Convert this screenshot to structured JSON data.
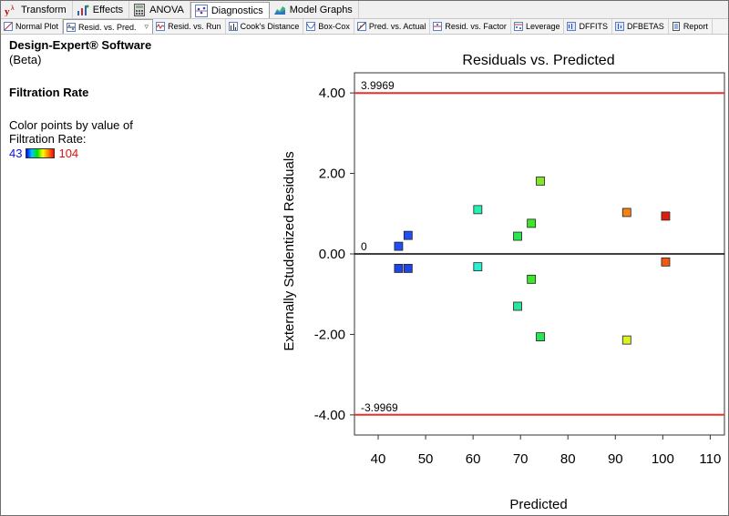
{
  "toolbar": {
    "tabs": [
      {
        "label": "Transform",
        "icon": "transform-icon"
      },
      {
        "label": "Effects",
        "icon": "effects-icon"
      },
      {
        "label": "ANOVA",
        "icon": "calculator-icon"
      },
      {
        "label": "Diagnostics",
        "icon": "diagnostics-icon",
        "active": true
      },
      {
        "label": "Model Graphs",
        "icon": "model-graphs-icon"
      }
    ]
  },
  "subtoolbar": {
    "tabs": [
      {
        "label": "Normal Plot",
        "icon": "normal-plot-icon"
      },
      {
        "label": "Resid. vs. Pred.",
        "icon": "resid-pred-icon",
        "active": true,
        "dropdown": "▿"
      },
      {
        "label": "Resid. vs. Run",
        "icon": "resid-run-icon"
      },
      {
        "label": "Cook's Distance",
        "icon": "cooks-distance-icon"
      },
      {
        "label": "Box-Cox",
        "icon": "box-cox-icon"
      },
      {
        "label": "Pred. vs. Actual",
        "icon": "pred-actual-icon"
      },
      {
        "label": "Resid. vs. Factor",
        "icon": "resid-factor-icon"
      },
      {
        "label": "Leverage",
        "icon": "leverage-icon"
      },
      {
        "label": "DFFITS",
        "icon": "dffits-icon"
      },
      {
        "label": "DFBETAS",
        "icon": "dfbetas-icon"
      },
      {
        "label": "Report",
        "icon": "report-icon"
      }
    ]
  },
  "left_panel": {
    "software": "Design-Expert® Software",
    "edition": "(Beta)",
    "response": "Filtration Rate",
    "color_label": "Color points by value of Filtration Rate:",
    "color_min": "43",
    "color_max": "104"
  },
  "colors": {
    "limit_line": "#e8312a",
    "zero_line": "#000000",
    "low": "#1010e0",
    "high": "#e01010"
  },
  "chart_data": {
    "type": "scatter",
    "title": "Residuals vs. Predicted",
    "xlabel": "Predicted",
    "ylabel": "Externally Studentized Residuals",
    "xlim": [
      35,
      113
    ],
    "ylim": [
      -4.5,
      4.5
    ],
    "x_ticks": [
      40,
      50,
      60,
      70,
      80,
      90,
      100,
      110
    ],
    "y_ticks": [
      -4,
      -2,
      0,
      2,
      4
    ],
    "y_tick_labels": [
      "-4.00",
      "-2.00",
      "0.00",
      "2.00",
      "4.00"
    ],
    "reference_lines": [
      {
        "y": 3.9969,
        "label": "3.9969",
        "color": "#e8312a"
      },
      {
        "y": 0,
        "label": "0",
        "color": "#000000"
      },
      {
        "y": -3.9969,
        "label": "-3.9969",
        "color": "#e8312a"
      }
    ],
    "points": [
      {
        "x": 44.3,
        "y": 0.19,
        "color": "#1e50f5"
      },
      {
        "x": 46.3,
        "y": 0.46,
        "color": "#1e50f5"
      },
      {
        "x": 44.3,
        "y": -0.36,
        "color": "#1e46e6"
      },
      {
        "x": 46.3,
        "y": -0.36,
        "color": "#1e46e6"
      },
      {
        "x": 61.0,
        "y": 1.1,
        "color": "#28f0b4"
      },
      {
        "x": 61.0,
        "y": -0.32,
        "color": "#28f0d2"
      },
      {
        "x": 69.4,
        "y": 0.44,
        "color": "#28e650"
      },
      {
        "x": 69.4,
        "y": -1.3,
        "color": "#28e69b"
      },
      {
        "x": 72.3,
        "y": 0.76,
        "color": "#3ce628"
      },
      {
        "x": 72.3,
        "y": -0.63,
        "color": "#3ce628"
      },
      {
        "x": 74.2,
        "y": 1.81,
        "color": "#82e628"
      },
      {
        "x": 74.2,
        "y": -2.06,
        "color": "#28e650"
      },
      {
        "x": 92.4,
        "y": 1.03,
        "color": "#f58214"
      },
      {
        "x": 92.4,
        "y": -2.14,
        "color": "#dcf028"
      },
      {
        "x": 100.6,
        "y": 0.94,
        "color": "#dc1e0a"
      },
      {
        "x": 100.6,
        "y": -0.2,
        "color": "#f05a14"
      }
    ]
  }
}
